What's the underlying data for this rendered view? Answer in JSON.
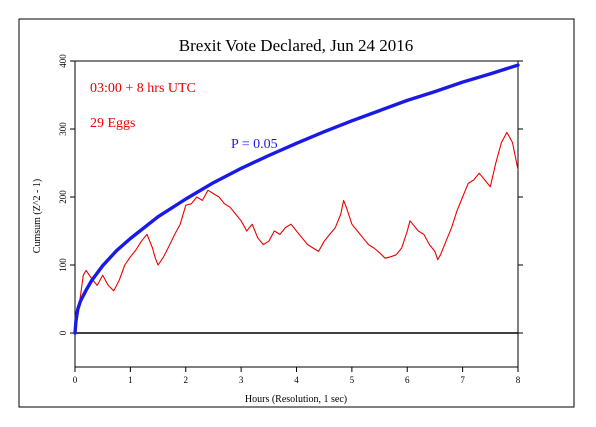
{
  "chart_data": {
    "type": "line",
    "title": "Brexit Vote Declared, Jun 24 2016",
    "xlabel": "Hours (Resolution, 1 sec)",
    "ylabel": "Cumsum (Z^2 - 1)",
    "xlim": [
      0,
      8
    ],
    "ylim": [
      -50,
      400
    ],
    "x_ticks": [
      "0",
      "1",
      "2",
      "3",
      "4",
      "5",
      "6",
      "7",
      "8"
    ],
    "y_ticks": [
      "0",
      "100",
      "200",
      "300",
      "400"
    ],
    "grid": false,
    "annotations": {
      "time": "03:00 + 8 hrs UTC",
      "eggs": "29 Eggs",
      "p_label": "P = 0.05"
    },
    "series": [
      {
        "role": "cumsum",
        "color": "#ee0000",
        "points": [
          [
            0.0,
            0
          ],
          [
            0.05,
            25
          ],
          [
            0.1,
            55
          ],
          [
            0.15,
            85
          ],
          [
            0.2,
            92
          ],
          [
            0.3,
            80
          ],
          [
            0.4,
            70
          ],
          [
            0.5,
            85
          ],
          [
            0.6,
            70
          ],
          [
            0.7,
            62
          ],
          [
            0.8,
            78
          ],
          [
            0.9,
            100
          ],
          [
            1.0,
            112
          ],
          [
            1.1,
            122
          ],
          [
            1.2,
            135
          ],
          [
            1.3,
            145
          ],
          [
            1.4,
            125
          ],
          [
            1.45,
            110
          ],
          [
            1.5,
            100
          ],
          [
            1.6,
            112
          ],
          [
            1.7,
            128
          ],
          [
            1.8,
            145
          ],
          [
            1.9,
            160
          ],
          [
            2.0,
            188
          ],
          [
            2.1,
            190
          ],
          [
            2.2,
            200
          ],
          [
            2.3,
            195
          ],
          [
            2.4,
            210
          ],
          [
            2.5,
            205
          ],
          [
            2.6,
            200
          ],
          [
            2.7,
            190
          ],
          [
            2.8,
            185
          ],
          [
            2.9,
            175
          ],
          [
            3.0,
            165
          ],
          [
            3.1,
            150
          ],
          [
            3.2,
            160
          ],
          [
            3.3,
            140
          ],
          [
            3.4,
            130
          ],
          [
            3.5,
            135
          ],
          [
            3.6,
            150
          ],
          [
            3.7,
            145
          ],
          [
            3.8,
            155
          ],
          [
            3.9,
            160
          ],
          [
            4.0,
            150
          ],
          [
            4.1,
            140
          ],
          [
            4.2,
            130
          ],
          [
            4.3,
            125
          ],
          [
            4.4,
            120
          ],
          [
            4.5,
            135
          ],
          [
            4.6,
            145
          ],
          [
            4.7,
            155
          ],
          [
            4.8,
            175
          ],
          [
            4.85,
            195
          ],
          [
            4.9,
            185
          ],
          [
            5.0,
            160
          ],
          [
            5.1,
            150
          ],
          [
            5.2,
            140
          ],
          [
            5.3,
            130
          ],
          [
            5.4,
            125
          ],
          [
            5.5,
            118
          ],
          [
            5.6,
            110
          ],
          [
            5.7,
            112
          ],
          [
            5.8,
            115
          ],
          [
            5.9,
            125
          ],
          [
            6.0,
            150
          ],
          [
            6.05,
            165
          ],
          [
            6.1,
            160
          ],
          [
            6.2,
            150
          ],
          [
            6.3,
            145
          ],
          [
            6.4,
            130
          ],
          [
            6.5,
            120
          ],
          [
            6.55,
            108
          ],
          [
            6.6,
            115
          ],
          [
            6.7,
            135
          ],
          [
            6.8,
            155
          ],
          [
            6.9,
            180
          ],
          [
            7.0,
            200
          ],
          [
            7.1,
            220
          ],
          [
            7.2,
            225
          ],
          [
            7.3,
            235
          ],
          [
            7.4,
            225
          ],
          [
            7.5,
            215
          ],
          [
            7.6,
            250
          ],
          [
            7.7,
            280
          ],
          [
            7.8,
            295
          ],
          [
            7.9,
            280
          ],
          [
            8.0,
            240
          ]
        ]
      },
      {
        "role": "p_0.05_envelope",
        "color": "#1a1ae6",
        "points": [
          [
            0.0,
            0
          ],
          [
            0.02,
            20
          ],
          [
            0.05,
            35
          ],
          [
            0.1,
            47
          ],
          [
            0.2,
            63
          ],
          [
            0.3,
            77
          ],
          [
            0.5,
            99
          ],
          [
            0.75,
            121
          ],
          [
            1.0,
            139
          ],
          [
            1.5,
            171
          ],
          [
            2.0,
            197
          ],
          [
            2.5,
            221
          ],
          [
            3.0,
            242
          ],
          [
            3.5,
            261
          ],
          [
            4.0,
            279
          ],
          [
            4.5,
            296
          ],
          [
            5.0,
            312
          ],
          [
            5.5,
            327
          ],
          [
            6.0,
            342
          ],
          [
            6.5,
            355
          ],
          [
            7.0,
            369
          ],
          [
            7.5,
            381
          ],
          [
            8.0,
            394
          ]
        ]
      }
    ]
  }
}
